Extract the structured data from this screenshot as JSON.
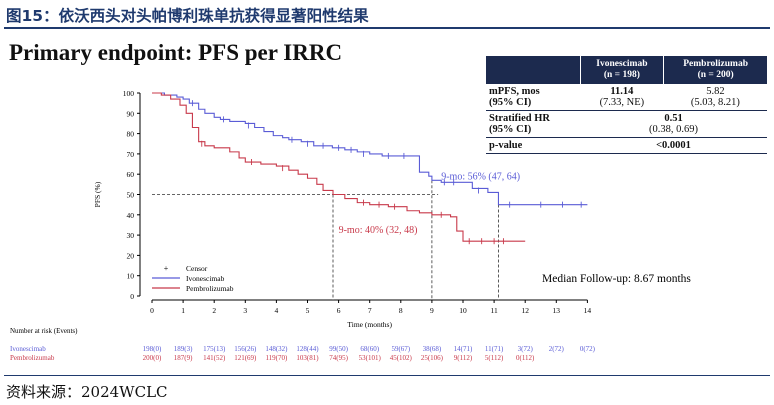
{
  "figure_title": "图15：依沃西头对头帕博利珠单抗获得显著阳性结果",
  "heading": "Primary endpoint: PFS per IRRC",
  "source": "资料来源：2024WCLC",
  "table": {
    "headers": [
      {
        "name": "Ivonescimab",
        "n": "(n = 198)"
      },
      {
        "name": "Pembrolizumab",
        "n": "(n = 200)"
      }
    ],
    "rows": [
      {
        "label": "mPFS, mos",
        "sublabel": "(95% CI)",
        "ivo": "11.14",
        "ivo_ci": "(7.33, NE)",
        "pem": "5.82",
        "pem_ci": "(5.03, 8.21)"
      },
      {
        "label": "Stratified HR",
        "sublabel": "(95% CI)",
        "merged": "0.51",
        "merged_ci": "(0.38, 0.69)"
      },
      {
        "label": "p-value",
        "merged": "<0.0001"
      }
    ]
  },
  "chart_data": {
    "type": "line",
    "ylabel": "PFS (%)",
    "xlabel": "Time (months)",
    "xlim": [
      0,
      14
    ],
    "ylim": [
      0,
      100
    ],
    "xticks": [
      0,
      1,
      2,
      3,
      4,
      5,
      6,
      7,
      8,
      9,
      10,
      11,
      12,
      13,
      14
    ],
    "yticks": [
      0,
      10,
      20,
      30,
      40,
      50,
      60,
      70,
      80,
      90,
      100
    ],
    "legend": [
      "Censor",
      "Ivonescimab",
      "Pembrolizumab"
    ],
    "legend_position": "bottom-left",
    "colors": {
      "ivonescimab": "#5a5cd6",
      "pembrolizumab": "#c8394a"
    },
    "series": [
      {
        "name": "Ivonescimab",
        "steps": [
          [
            0,
            100
          ],
          [
            0.4,
            99
          ],
          [
            0.8,
            98
          ],
          [
            1.0,
            97
          ],
          [
            1.2,
            95
          ],
          [
            1.5,
            92
          ],
          [
            1.7,
            90
          ],
          [
            2.0,
            88
          ],
          [
            2.2,
            87
          ],
          [
            2.5,
            86
          ],
          [
            3.0,
            85
          ],
          [
            3.3,
            83
          ],
          [
            3.6,
            81
          ],
          [
            3.9,
            79
          ],
          [
            4.2,
            78
          ],
          [
            4.4,
            77
          ],
          [
            4.8,
            76
          ],
          [
            5.2,
            74
          ],
          [
            5.8,
            73
          ],
          [
            6.2,
            72
          ],
          [
            6.6,
            71
          ],
          [
            7.0,
            70
          ],
          [
            7.4,
            69
          ],
          [
            8.0,
            69
          ],
          [
            8.3,
            69
          ],
          [
            8.6,
            61
          ],
          [
            8.9,
            59
          ],
          [
            9.0,
            57
          ],
          [
            9.3,
            56
          ],
          [
            9.6,
            56
          ],
          [
            10.0,
            56
          ],
          [
            10.3,
            53
          ],
          [
            10.8,
            51
          ],
          [
            11.0,
            51
          ],
          [
            11.14,
            45
          ],
          [
            14,
            45
          ]
        ],
        "censors": [
          [
            1.3,
            95
          ],
          [
            2.3,
            87
          ],
          [
            3.1,
            84
          ],
          [
            4.5,
            77
          ],
          [
            5.0,
            75
          ],
          [
            5.5,
            74
          ],
          [
            6.0,
            73
          ],
          [
            6.4,
            72
          ],
          [
            6.8,
            70
          ],
          [
            7.6,
            69
          ],
          [
            8.1,
            69
          ],
          [
            9.4,
            56
          ],
          [
            9.7,
            56
          ],
          [
            10.5,
            52
          ],
          [
            11.5,
            45
          ],
          [
            12.5,
            45
          ],
          [
            13.2,
            45
          ],
          [
            13.8,
            45
          ]
        ],
        "median_x": 11.14,
        "annotation": "9-mo: 56% (47, 64)"
      },
      {
        "name": "Pembrolizumab",
        "steps": [
          [
            0,
            100
          ],
          [
            0.3,
            99
          ],
          [
            0.6,
            97
          ],
          [
            0.9,
            94
          ],
          [
            1.1,
            90
          ],
          [
            1.3,
            83
          ],
          [
            1.5,
            76
          ],
          [
            1.7,
            74
          ],
          [
            2.0,
            73
          ],
          [
            2.5,
            71
          ],
          [
            2.8,
            68
          ],
          [
            3.0,
            66
          ],
          [
            3.5,
            65
          ],
          [
            4.0,
            64
          ],
          [
            4.4,
            62
          ],
          [
            4.7,
            60
          ],
          [
            5.0,
            58
          ],
          [
            5.3,
            55
          ],
          [
            5.5,
            52
          ],
          [
            5.82,
            50
          ],
          [
            6.2,
            48
          ],
          [
            6.6,
            46
          ],
          [
            7.0,
            45
          ],
          [
            7.6,
            44
          ],
          [
            8.0,
            44
          ],
          [
            8.2,
            42
          ],
          [
            8.6,
            41
          ],
          [
            9.0,
            40
          ],
          [
            9.6,
            39
          ],
          [
            9.8,
            32
          ],
          [
            10.0,
            27
          ],
          [
            12.0,
            27
          ]
        ],
        "censors": [
          [
            1.6,
            75
          ],
          [
            3.2,
            66
          ],
          [
            4.2,
            63
          ],
          [
            6.8,
            46
          ],
          [
            7.3,
            45
          ],
          [
            7.8,
            44
          ],
          [
            9.3,
            40
          ],
          [
            10.2,
            27
          ],
          [
            10.6,
            27
          ],
          [
            11.0,
            27
          ],
          [
            11.3,
            27
          ]
        ],
        "median_x": 5.82,
        "annotation": "9-mo: 40% (32, 48)"
      }
    ],
    "reference_lines": [
      {
        "y": 50
      },
      {
        "x": 9
      }
    ],
    "median_followup": "Median Follow-up: 8.67 months",
    "number_at_risk": {
      "title": "Number at risk (Events)",
      "rows": [
        {
          "name": "Ivonescimab",
          "values": [
            "198(0)",
            "189(3)",
            "175(13)",
            "156(26)",
            "148(32)",
            "128(44)",
            "99(50)",
            "68(60)",
            "59(67)",
            "38(68)",
            "14(71)",
            "11(71)",
            "3(72)",
            "2(72)",
            "0(72)"
          ]
        },
        {
          "name": "Pembrolizumab",
          "values": [
            "200(0)",
            "187(9)",
            "141(52)",
            "121(69)",
            "119(70)",
            "103(81)",
            "74(95)",
            "53(101)",
            "45(102)",
            "25(106)",
            "9(112)",
            "5(112)",
            "0(112)"
          ]
        }
      ]
    }
  }
}
